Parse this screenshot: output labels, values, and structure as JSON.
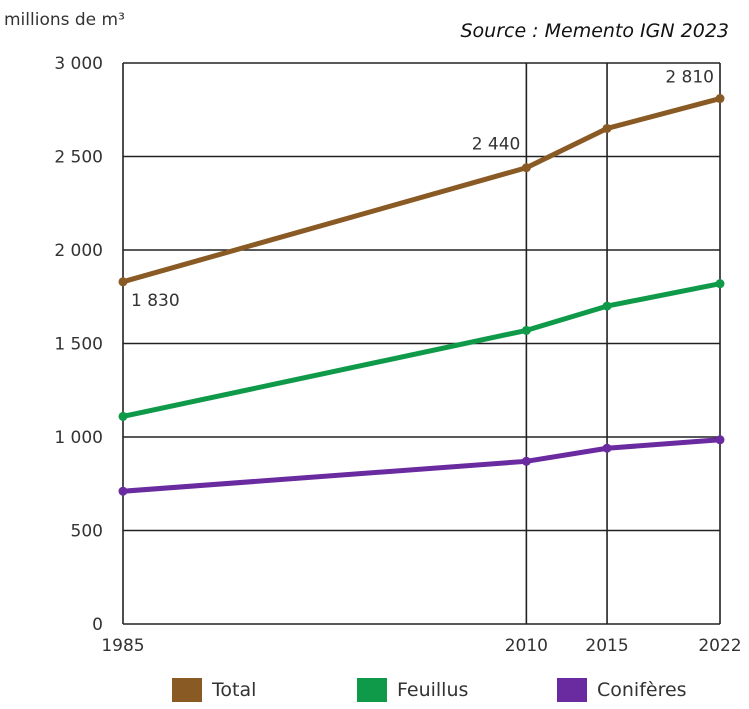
{
  "chart_data": {
    "type": "line",
    "ylabel": "millions de m³",
    "source": "Source : Memento IGN 2023",
    "x": [
      1985,
      2010,
      2015,
      2022
    ],
    "xtick_labels": [
      "1985",
      "2010",
      "2015",
      "2022"
    ],
    "ylim": [
      0,
      3000
    ],
    "yticks": [
      0,
      500,
      1000,
      1500,
      2000,
      2500,
      3000
    ],
    "ytick_labels": [
      "0",
      "500",
      "1 000",
      "1 500",
      "2 000",
      "2 500",
      "3 000"
    ],
    "grid": true,
    "legend_position": "bottom",
    "series": [
      {
        "name": "Total",
        "color": "#8a5a24",
        "values": [
          1830,
          2440,
          2650,
          2810
        ]
      },
      {
        "name": "Feuillus",
        "color": "#0f9a4a",
        "values": [
          1110,
          1570,
          1700,
          1820
        ]
      },
      {
        "name": "Conifères",
        "color": "#6a2aa0",
        "values": [
          710,
          870,
          940,
          985
        ]
      }
    ],
    "annotations": [
      {
        "series": 0,
        "point": 0,
        "text": "1 830"
      },
      {
        "series": 0,
        "point": 1,
        "text": "2 440"
      },
      {
        "series": 0,
        "point": 3,
        "text": "2 810"
      }
    ]
  }
}
